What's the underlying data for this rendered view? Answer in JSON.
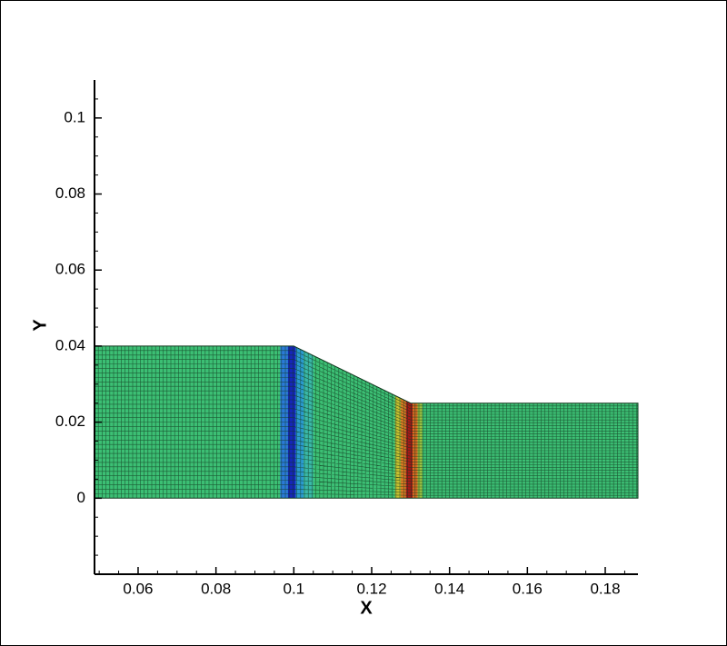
{
  "chart_data": {
    "type": "mesh",
    "xlabel": "X",
    "ylabel": "Y",
    "xlim": [
      0.0488,
      0.1884
    ],
    "ylim": [
      -0.02,
      0.11
    ],
    "xticks": [
      0.06,
      0.08,
      0.1,
      0.12,
      0.14,
      0.16,
      0.18
    ],
    "yticks": [
      0,
      0.02,
      0.04,
      0.06,
      0.08,
      0.1
    ],
    "outline": {
      "x": [
        0.0488,
        0.1,
        0.13,
        0.1884
      ],
      "y": [
        0.04,
        0.04,
        0.025,
        0.025
      ]
    },
    "fill_color": "#3cbf74",
    "mesh_color": "#12381f",
    "bands": [
      {
        "x": [
          0.0965,
          0.0985
        ],
        "color": "#2a7ad8"
      },
      {
        "x": [
          0.0985,
          0.1005
        ],
        "color": "#1626b8"
      },
      {
        "x": [
          0.1005,
          0.1025
        ],
        "color": "#2a9ad0"
      },
      {
        "x": [
          0.1025,
          0.105
        ],
        "color": "#3ab8a8"
      },
      {
        "x": [
          0.126,
          0.1275
        ],
        "color": "#c8c030"
      },
      {
        "x": [
          0.1275,
          0.1288
        ],
        "color": "#e07a20"
      },
      {
        "x": [
          0.1288,
          0.1305
        ],
        "color": "#a81818"
      },
      {
        "x": [
          0.1305,
          0.1318
        ],
        "color": "#d86a20"
      },
      {
        "x": [
          0.1318,
          0.133
        ],
        "color": "#9cc040"
      }
    ]
  }
}
